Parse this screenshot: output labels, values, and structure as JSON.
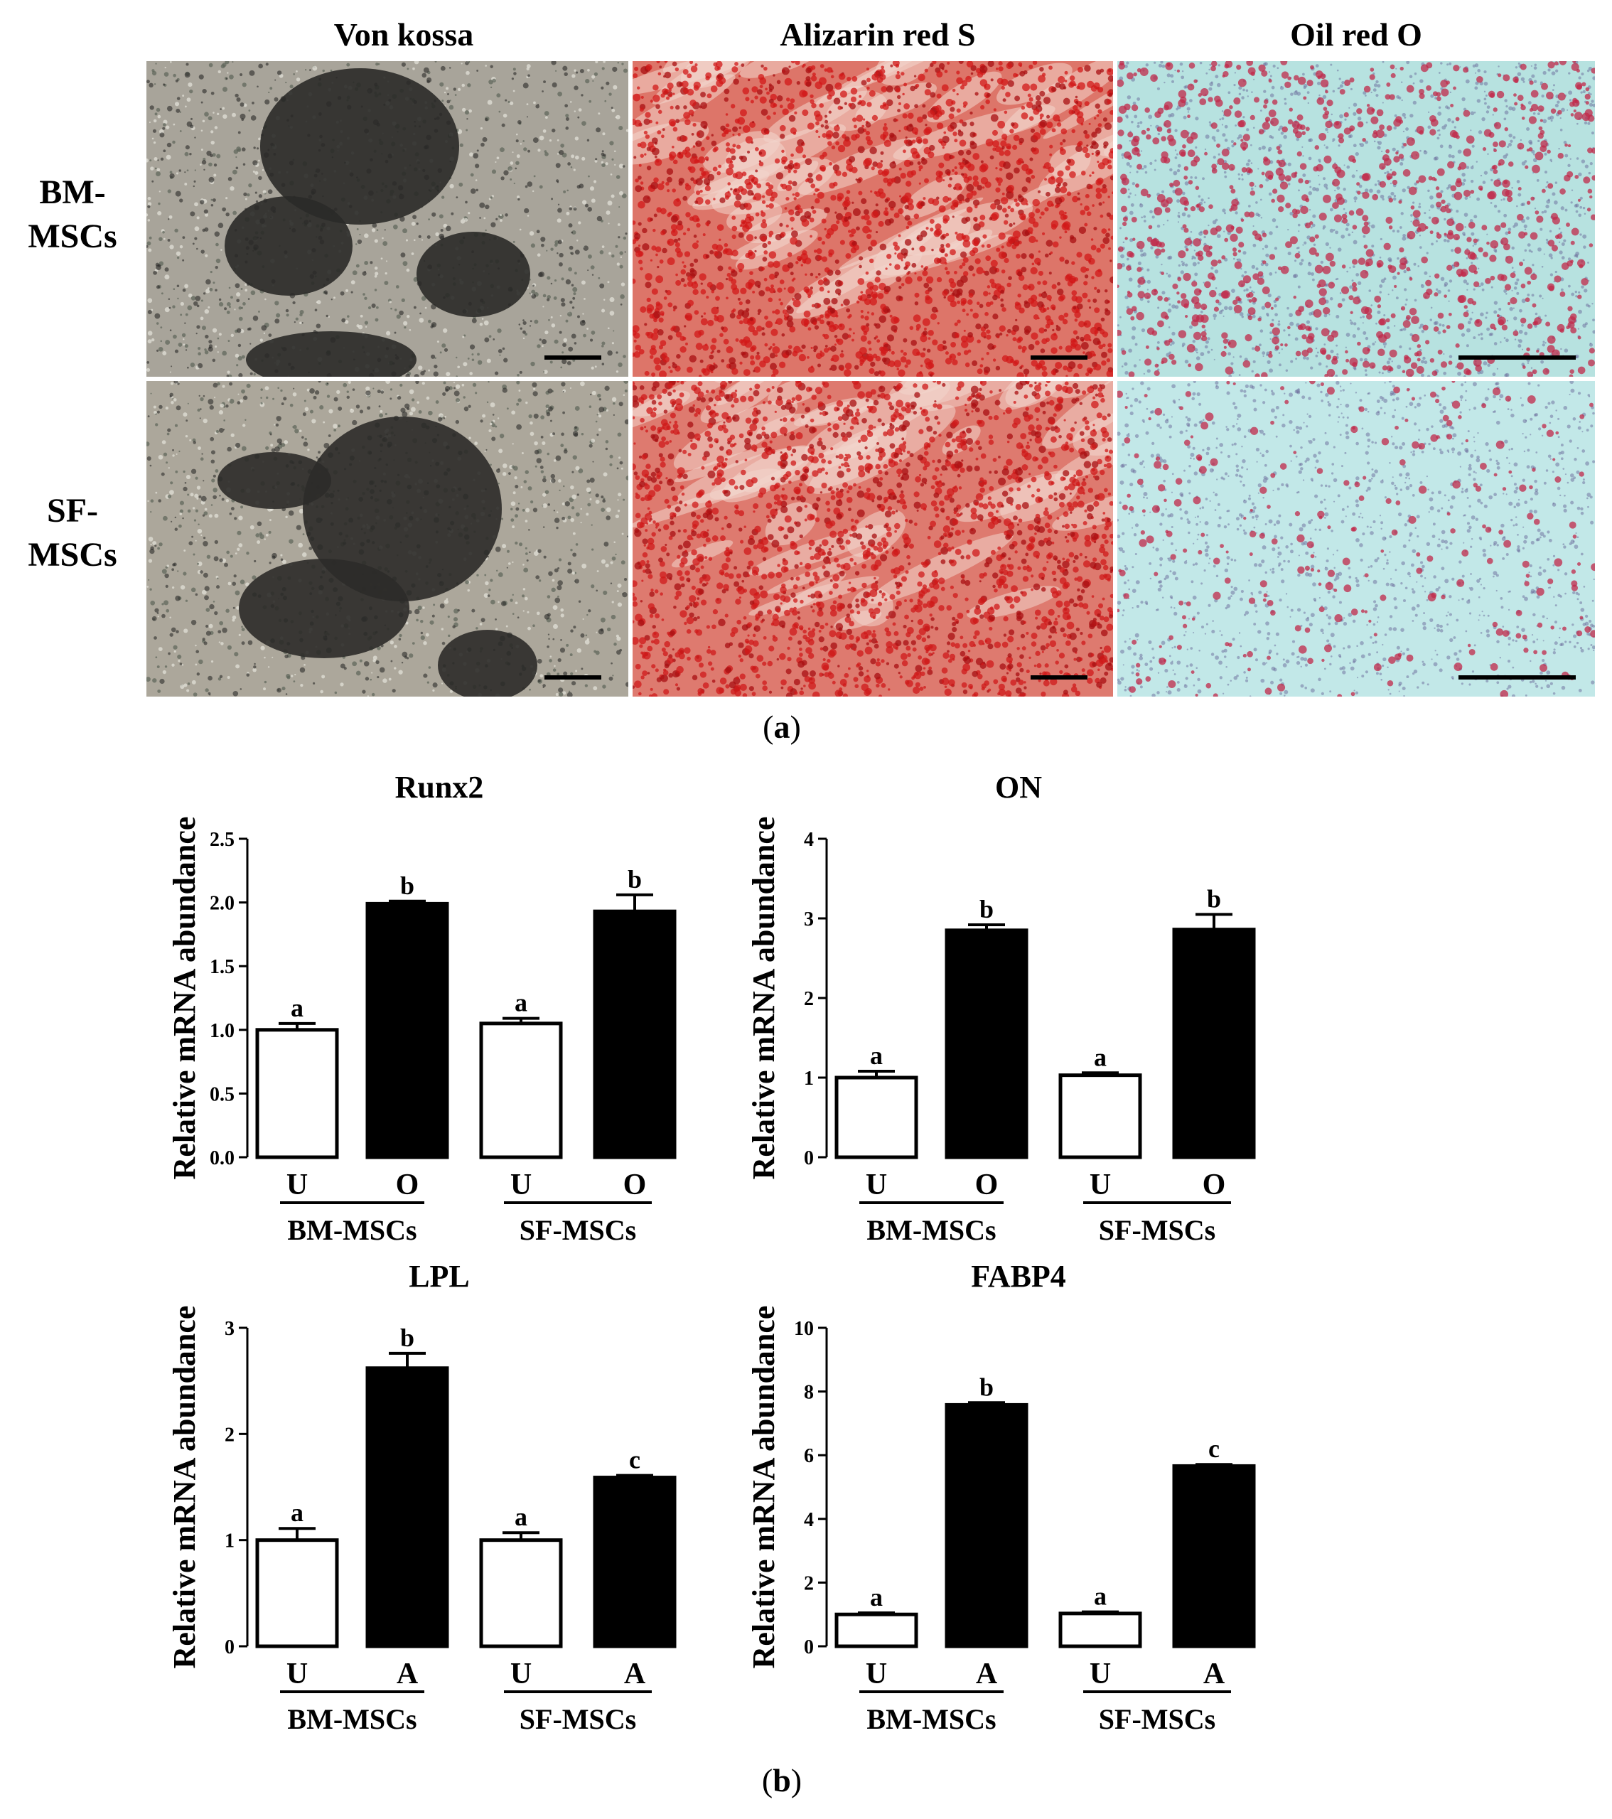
{
  "panel_a": {
    "label": "a",
    "columns": [
      "Von kossa",
      "Alizarin red S",
      "Oil red O"
    ],
    "rows": [
      {
        "line1": "BM-",
        "line2": "MSCs"
      },
      {
        "line1": "SF-",
        "line2": "MSCs"
      }
    ],
    "images": [
      {
        "name": "von-kossa-bm-mscs",
        "stain": "von-kossa",
        "base": "#a8a49a",
        "dark": "#2a2a28"
      },
      {
        "name": "alizarin-bm-mscs",
        "stain": "alizarin",
        "base": "#e8bcb0",
        "dark": "#d21818"
      },
      {
        "name": "oil-red-bm-mscs",
        "stain": "oil-red",
        "base": "#b7e2e0",
        "dark": "#8a2a4a"
      },
      {
        "name": "von-kossa-sf-mscs",
        "stain": "von-kossa",
        "base": "#aca79b",
        "dark": "#2c2b29"
      },
      {
        "name": "alizarin-sf-mscs",
        "stain": "alizarin",
        "base": "#ecc8bc",
        "dark": "#cf1a1a"
      },
      {
        "name": "oil-red-sf-mscs",
        "stain": "oil-red",
        "base": "#c2e8e8",
        "dark": "#6e4a80"
      }
    ]
  },
  "panel_b": {
    "label": "b"
  },
  "chart_data": [
    {
      "type": "bar",
      "title": "Runx2",
      "ylabel": "Relative mRNA abundance",
      "ylim": [
        0,
        2.5
      ],
      "yticks": [
        "0.0",
        "0.5",
        "1.0",
        "1.5",
        "2.0",
        "2.5"
      ],
      "categories": [
        "U",
        "O",
        "U",
        "O"
      ],
      "groups": [
        "BM-MSCs",
        "SF-MSCs"
      ],
      "values": [
        1.0,
        1.99,
        1.05,
        1.93
      ],
      "errors": [
        0.05,
        0.02,
        0.04,
        0.13
      ],
      "fills": [
        "#ffffff",
        "#000000",
        "#ffffff",
        "#000000"
      ],
      "letters": [
        "a",
        "b",
        "a",
        "b"
      ]
    },
    {
      "type": "bar",
      "title": "ON",
      "ylabel": "Relative mRNA abundance",
      "ylim": [
        0,
        4
      ],
      "yticks": [
        "0",
        "1",
        "2",
        "3",
        "4"
      ],
      "categories": [
        "U",
        "O",
        "U",
        "O"
      ],
      "groups": [
        "BM-MSCs",
        "SF-MSCs"
      ],
      "values": [
        1.0,
        2.85,
        1.03,
        2.86
      ],
      "errors": [
        0.08,
        0.07,
        0.03,
        0.19
      ],
      "fills": [
        "#ffffff",
        "#000000",
        "#ffffff",
        "#000000"
      ],
      "letters": [
        "a",
        "b",
        "a",
        "b"
      ]
    },
    {
      "type": "bar",
      "title": "LPL",
      "ylabel": "Relative mRNA abundance",
      "ylim": [
        0,
        3
      ],
      "yticks": [
        "0",
        "1",
        "2",
        "3"
      ],
      "categories": [
        "U",
        "A",
        "U",
        "A"
      ],
      "groups": [
        "BM-MSCs",
        "SF-MSCs"
      ],
      "values": [
        1.0,
        2.62,
        1.0,
        1.59
      ],
      "errors": [
        0.11,
        0.14,
        0.07,
        0.02
      ],
      "fills": [
        "#ffffff",
        "#000000",
        "#ffffff",
        "#000000"
      ],
      "letters": [
        "a",
        "b",
        "a",
        "c"
      ]
    },
    {
      "type": "bar",
      "title": "FABP4",
      "ylabel": "Relative mRNA abundance",
      "ylim": [
        0,
        10
      ],
      "yticks": [
        "0",
        "2",
        "4",
        "6",
        "8",
        "10"
      ],
      "categories": [
        "U",
        "A",
        "U",
        "A"
      ],
      "groups": [
        "BM-MSCs",
        "SF-MSCs"
      ],
      "values": [
        1.0,
        7.58,
        1.03,
        5.66
      ],
      "errors": [
        0.05,
        0.07,
        0.05,
        0.05
      ],
      "fills": [
        "#ffffff",
        "#000000",
        "#ffffff",
        "#000000"
      ],
      "letters": [
        "a",
        "b",
        "a",
        "c"
      ]
    }
  ]
}
